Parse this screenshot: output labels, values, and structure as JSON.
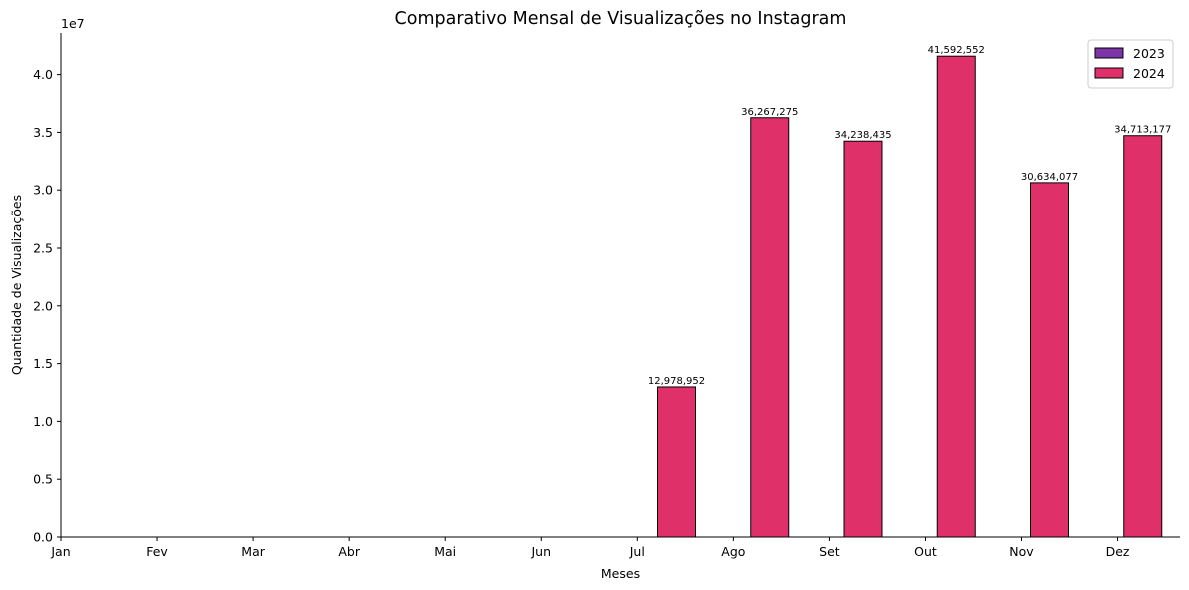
{
  "chart_data": {
    "type": "bar",
    "title": "Comparativo Mensal de Visualizações no Instagram",
    "xlabel": "Meses",
    "ylabel": "Quantidade de Visualizações",
    "y_offset_text": "1e7",
    "categories": [
      "Jan",
      "Fev",
      "Mar",
      "Abr",
      "Mai",
      "Jun",
      "Jul",
      "Ago",
      "Set",
      "Out",
      "Nov",
      "Dez"
    ],
    "series": [
      {
        "name": "2023",
        "color": "#7b35a8",
        "values": [
          0,
          0,
          0,
          0,
          0,
          0,
          0,
          0,
          0,
          0,
          0,
          0
        ]
      },
      {
        "name": "2024",
        "color": "#e0306a",
        "values": [
          0,
          0,
          0,
          0,
          0,
          0,
          12978952,
          36267275,
          34238435,
          41592552,
          30634077,
          34713177
        ]
      }
    ],
    "data_labels": [
      "",
      "",
      "",
      "",
      "",
      "",
      "12,978,952",
      "36,267,275",
      "34,238,435",
      "41,592,552",
      "30,634,077",
      "34,713,177"
    ],
    "ylim": [
      0,
      43600000
    ],
    "yticks": [
      0,
      5000000,
      10000000,
      15000000,
      20000000,
      25000000,
      30000000,
      35000000,
      40000000
    ],
    "ytick_labels": [
      "0.0",
      "0.5",
      "1.0",
      "1.5",
      "2.0",
      "2.5",
      "3.0",
      "3.5",
      "4.0"
    ],
    "grid": false,
    "legend_position": "top-right"
  }
}
